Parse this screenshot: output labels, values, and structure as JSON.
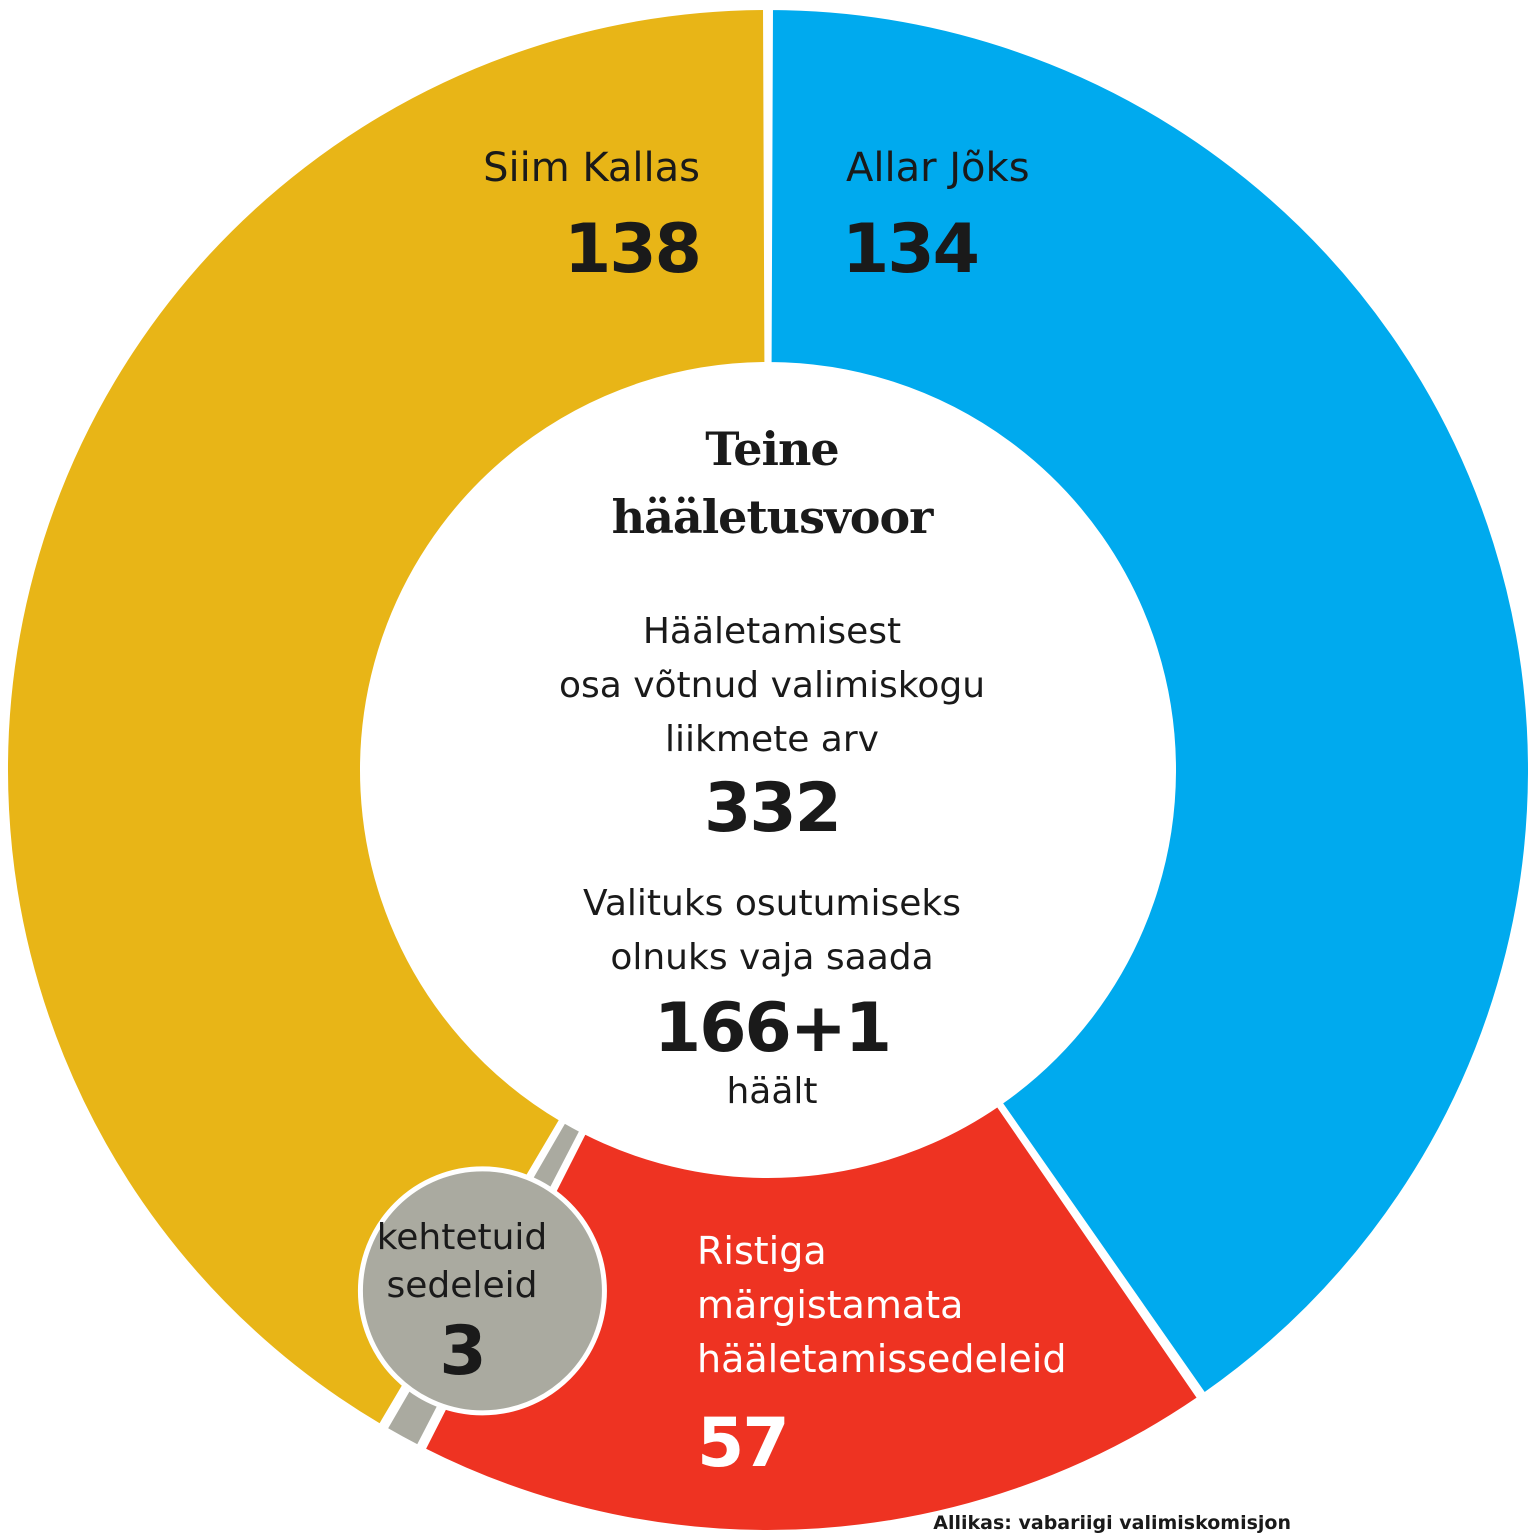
{
  "chart_data": {
    "type": "pie",
    "style": "donut",
    "title": "Teine hääletusvoor",
    "slices": [
      {
        "label": "Siim Kallas",
        "value": 138,
        "color": "#E8B517"
      },
      {
        "label": "Allar Jõks",
        "value": 134,
        "color": "#00AAEE"
      },
      {
        "label": "Ristiga märgistamata hääletamissedeleid",
        "label_lines": [
          "Ristiga",
          "märgistamata",
          "hääletamissedeleid"
        ],
        "value": 57,
        "color": "#EE3322"
      },
      {
        "label": "kehtetuid sedeleid",
        "label_lines": [
          "kehtetuid",
          "sedeleid"
        ],
        "value": 3,
        "color": "#AAAAA0"
      }
    ],
    "center": {
      "participants_label_lines": [
        "Hääletamisest",
        "osa võtnud valimiskogu",
        "liikmete arv"
      ],
      "participants_value": "332",
      "needed_label_lines": [
        "Valituks osutumiseks",
        "olnuks vaja saada"
      ],
      "needed_value": "166+1",
      "needed_unit": "häält"
    },
    "source": "Allikas: vabariigi valimiskomisjon"
  }
}
